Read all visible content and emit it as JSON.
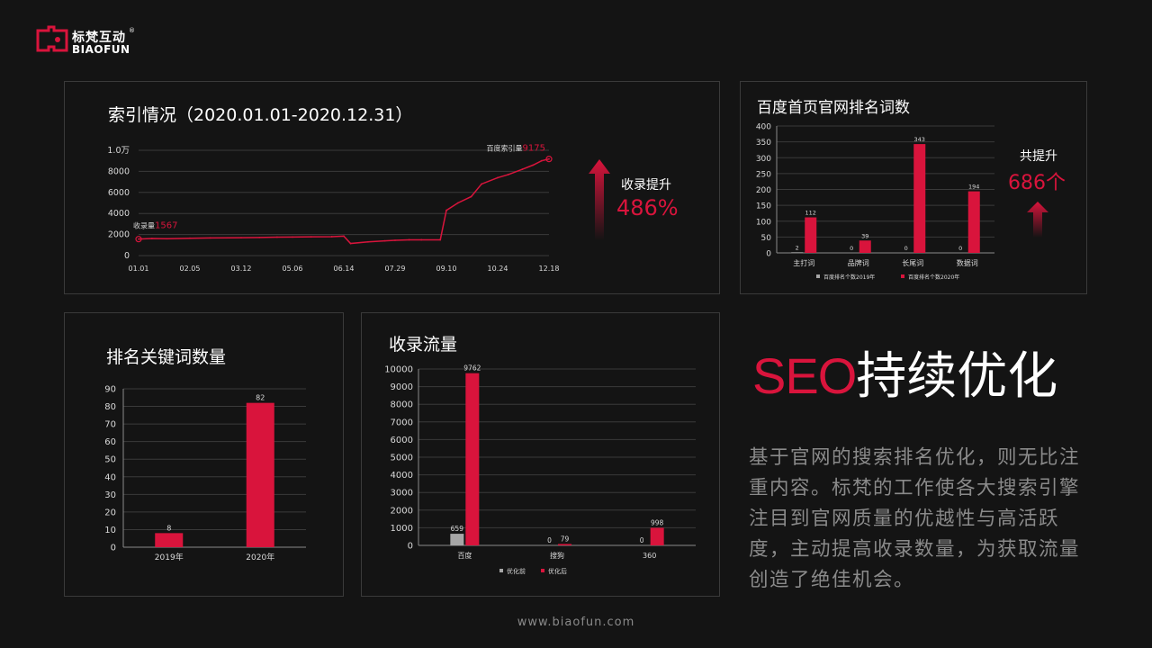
{
  "brand": {
    "name_cn": "标梵互动",
    "name_en": "BIAOFUN",
    "reg_mark": "®"
  },
  "seo": {
    "title_en": "SEO",
    "title_cn": "持续优化",
    "description": "基于官网的搜索排名优化，则无比注重内容。标梵的工作使各大搜索引擎注目到官网质量的优越性与高活跃度，主动提高收录数量，为获取流量创造了绝佳机会。"
  },
  "footer": "www.biaofun.com",
  "kpi": {
    "index": {
      "label": "收录提升",
      "value": "486%"
    },
    "baidu": {
      "label": "共提升",
      "value": "686个"
    }
  },
  "colors": {
    "accent": "#d9143c",
    "gray_bar": "#a6a6a6",
    "background": "#141414"
  },
  "chart_data": [
    {
      "id": "index",
      "type": "line",
      "title": "索引情况（2020.01.01-2020.12.31）",
      "x_ticks": [
        "01.01",
        "02.05",
        "03.12",
        "05.06",
        "06.14",
        "07.29",
        "09.10",
        "10.24",
        "12.18"
      ],
      "y_ticks": [
        "0",
        "2000",
        "4000",
        "6000",
        "8000",
        "1.0万"
      ],
      "ylim": [
        0,
        10000
      ],
      "start_annotation": {
        "label": "收录量",
        "value": "1567"
      },
      "end_annotation": {
        "label": "百度索引量",
        "value": "9175"
      },
      "x": [
        "01.01",
        "01.10",
        "01.20",
        "02.05",
        "02.20",
        "03.12",
        "04.01",
        "04.20",
        "05.06",
        "05.20",
        "06.05",
        "06.14",
        "06.20",
        "07.05",
        "07.20",
        "07.29",
        "08.10",
        "08.20",
        "09.05",
        "09.10",
        "09.20",
        "10.01",
        "10.10",
        "10.24",
        "11.05",
        "11.20",
        "12.01",
        "12.10",
        "12.18"
      ],
      "values": [
        1567,
        1620,
        1600,
        1650,
        1680,
        1700,
        1720,
        1750,
        1760,
        1780,
        1800,
        1850,
        1150,
        1300,
        1400,
        1450,
        1500,
        1500,
        1500,
        4300,
        5000,
        5600,
        6800,
        7400,
        7700,
        8200,
        8600,
        9000,
        9175
      ]
    },
    {
      "id": "baidu",
      "type": "bar",
      "title": "百度首页官网排名词数",
      "categories": [
        "主打词",
        "品牌词",
        "长尾词",
        "数据词"
      ],
      "y_ticks": [
        "0",
        "50",
        "100",
        "150",
        "200",
        "250",
        "300",
        "350",
        "400"
      ],
      "ylim": [
        0,
        400
      ],
      "series": [
        {
          "name": "百度排名个数2019年",
          "values": [
            2,
            0,
            0,
            0
          ]
        },
        {
          "name": "百度排名个数2020年",
          "values": [
            112,
            39,
            343,
            194
          ]
        }
      ],
      "legend": "bottom"
    },
    {
      "id": "keywords",
      "type": "bar",
      "title": "排名关键词数量",
      "categories": [
        "2019年",
        "2020年"
      ],
      "y_ticks": [
        "0",
        "10",
        "20",
        "30",
        "40",
        "50",
        "60",
        "70",
        "80",
        "90"
      ],
      "ylim": [
        0,
        90
      ],
      "series": [
        {
          "values": [
            8,
            82
          ]
        }
      ]
    },
    {
      "id": "traffic",
      "type": "bar",
      "title": "收录流量",
      "categories": [
        "百度",
        "搜狗",
        "360"
      ],
      "y_ticks": [
        "0",
        "1000",
        "2000",
        "3000",
        "4000",
        "5000",
        "6000",
        "7000",
        "8000",
        "9000",
        "10000"
      ],
      "ylim": [
        0,
        10000
      ],
      "series": [
        {
          "name": "优化前",
          "values": [
            659,
            0,
            0
          ]
        },
        {
          "name": "优化后",
          "values": [
            9762,
            79,
            998
          ]
        }
      ],
      "legend": "bottom"
    }
  ]
}
